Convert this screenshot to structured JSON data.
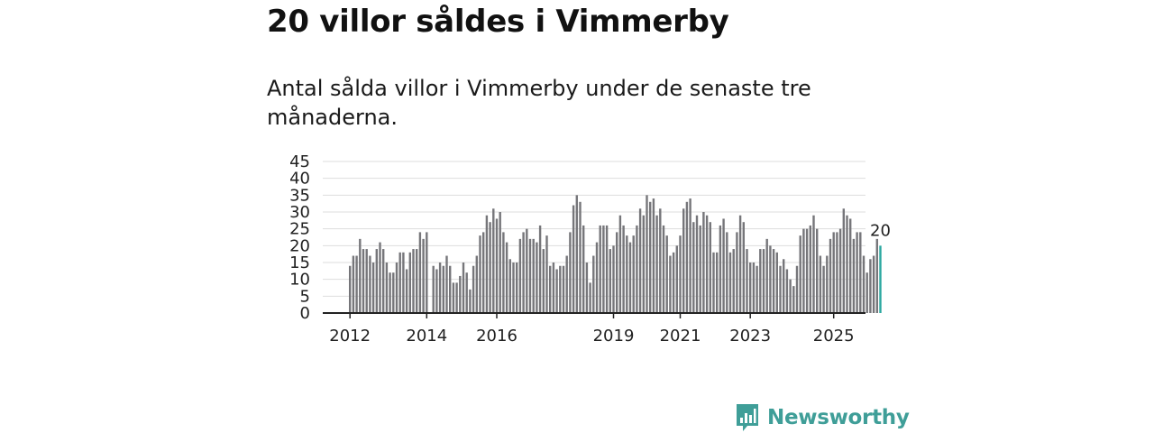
{
  "title": "20 villor såldes i Vimmerby",
  "subtitle": "Antal sålda villor i Vimmerby under de senaste tre månaderna.",
  "brand": {
    "name": "Newsworthy",
    "icon": "bar-chart-logo-icon",
    "color": "#3f9e98"
  },
  "chart_data": {
    "type": "bar",
    "title": "",
    "xlabel": "",
    "ylabel": "",
    "ylim": [
      0,
      45
    ],
    "yticks": [
      "0",
      "5",
      "10",
      "15",
      "20",
      "25",
      "30",
      "35",
      "40",
      "45"
    ],
    "xticks": [
      "2012",
      "2014",
      "2016",
      "2019",
      "2021",
      "2023",
      "2025"
    ],
    "grid": true,
    "colors": {
      "bars": "#76767a",
      "highlight": "#2aa7a0",
      "grid": "#dddddd",
      "axis": "#222222"
    },
    "highlight_label": "20",
    "series": [
      {
        "values": [
          14,
          17,
          17,
          22,
          19,
          19,
          17,
          15,
          19,
          21,
          19,
          15,
          12,
          12,
          15,
          18,
          18,
          13,
          18,
          19,
          19,
          24,
          22,
          24,
          0,
          14,
          13,
          15,
          14,
          17,
          14,
          9,
          9,
          11,
          15,
          12,
          7,
          14,
          17,
          23,
          24,
          29,
          27,
          31,
          28,
          30,
          24,
          21,
          16,
          15,
          15,
          22,
          24,
          25,
          22,
          22,
          21,
          26,
          19,
          23,
          14,
          15,
          13,
          14,
          14,
          17,
          24,
          32,
          35,
          33,
          26,
          15,
          9,
          17,
          21,
          26,
          26,
          26,
          19,
          20,
          24,
          29,
          26,
          23,
          21,
          23,
          26,
          31,
          29,
          35,
          33,
          34,
          29,
          31,
          26,
          23,
          17,
          18,
          20,
          23,
          31,
          33,
          34,
          27,
          29,
          26,
          30,
          29,
          27,
          18,
          18,
          26,
          28,
          24,
          18,
          19,
          24,
          29,
          27,
          19,
          15,
          15,
          14,
          19,
          19,
          22,
          20,
          19,
          18,
          14,
          16,
          13,
          10,
          8,
          14,
          23,
          25,
          25,
          26,
          29,
          25,
          17,
          14,
          17,
          22,
          24,
          24,
          25,
          31,
          29,
          28,
          22,
          24,
          24,
          17,
          12,
          16,
          17,
          22,
          20
        ]
      }
    ]
  }
}
